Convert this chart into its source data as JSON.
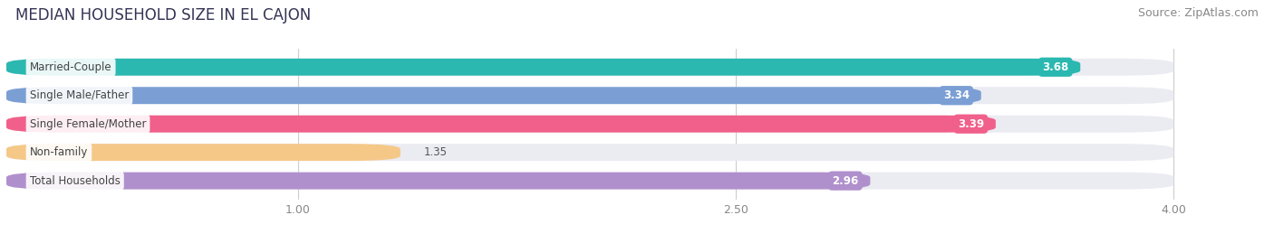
{
  "title": "MEDIAN HOUSEHOLD SIZE IN EL CAJON",
  "source": "Source: ZipAtlas.com",
  "categories": [
    "Married-Couple",
    "Single Male/Father",
    "Single Female/Mother",
    "Non-family",
    "Total Households"
  ],
  "values": [
    3.68,
    3.34,
    3.39,
    1.35,
    2.96
  ],
  "bar_colors": [
    "#2ab8b0",
    "#7b9fd4",
    "#f0608a",
    "#f5c888",
    "#b090cc"
  ],
  "bar_bg_color": "#ebebf2",
  "xlim": [
    0,
    4.3
  ],
  "xmin": 0.0,
  "xmax": 4.0,
  "xticks": [
    1.0,
    2.5,
    4.0
  ],
  "title_fontsize": 12,
  "source_fontsize": 9,
  "background_color": "#ffffff",
  "label_text_color": "#444444",
  "value_threshold": 1.8
}
